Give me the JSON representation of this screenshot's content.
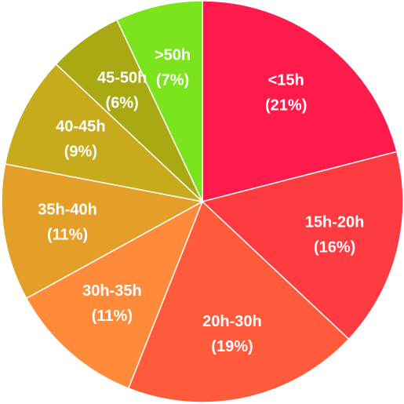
{
  "chart_data": {
    "type": "pie",
    "categories": [
      "<15h",
      "15h-20h",
      "20h-30h",
      "30h-35h",
      "35h-40h",
      "40-45h",
      "45-50h",
      ">50h"
    ],
    "values": [
      21,
      16,
      19,
      11,
      11,
      9,
      6,
      7
    ],
    "value_labels": [
      "(21%)",
      "(16%)",
      "(19%)",
      "(11%)",
      "(11%)",
      "(9%)",
      "(6%)",
      "(7%)"
    ],
    "colors": [
      "#fe1a4b",
      "#fe3b40",
      "#ff5a3c",
      "#fe8a3a",
      "#e39f27",
      "#c8ab1c",
      "#a9aa13",
      "#7be41c"
    ]
  }
}
